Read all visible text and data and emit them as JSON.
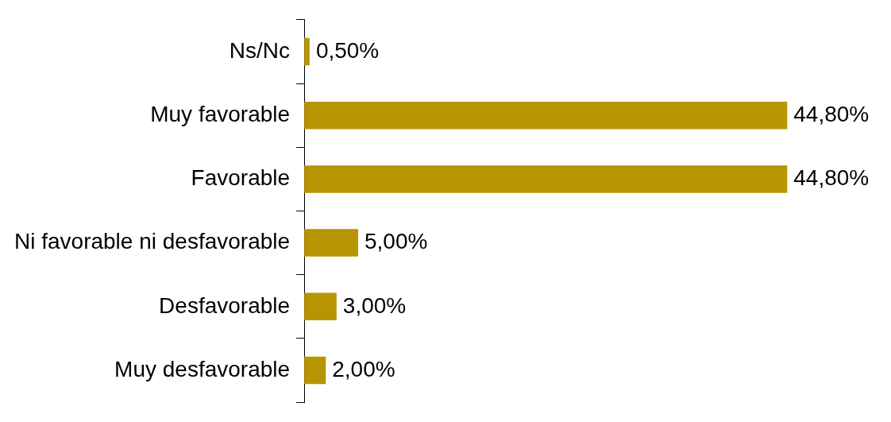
{
  "chart_data": {
    "type": "bar",
    "orientation": "horizontal",
    "categories": [
      "Ns/Nc",
      "Muy favorable",
      "Favorable",
      "Ni favorable ni desfavorable",
      "Desfavorable",
      "Muy desfavorable"
    ],
    "values": [
      0.5,
      44.8,
      44.8,
      5,
      3,
      2
    ],
    "value_labels": [
      "0,50%",
      "44,80%",
      "44,80%",
      "5,00%",
      "3,00%",
      "2,00%"
    ],
    "color": "#b89400",
    "grid": false,
    "legend": false
  }
}
